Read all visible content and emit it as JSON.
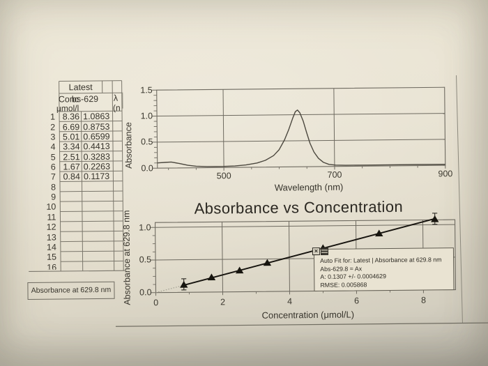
{
  "colors": {
    "paper": "#e8e2d1",
    "grid_line": "#6e6a60",
    "ink": "#34302a",
    "curve": "#4b473e",
    "marker": "#17150f",
    "fit_line": "#16130e"
  },
  "table": {
    "header": "Latest",
    "columns": [
      {
        "name": "Conc",
        "units": "μmol/l"
      },
      {
        "name": "bs-629",
        "units": ""
      },
      {
        "name": "λ",
        "units": "(n"
      }
    ],
    "rows": [
      {
        "n": "1",
        "conc": "8.36",
        "abs": "1.0863"
      },
      {
        "n": "2",
        "conc": "6.69",
        "abs": "0.8753"
      },
      {
        "n": "3",
        "conc": "5.01",
        "abs": "0.6599"
      },
      {
        "n": "4",
        "conc": "3.34",
        "abs": "0.4413"
      },
      {
        "n": "5",
        "conc": "2.51",
        "abs": "0.3283"
      },
      {
        "n": "6",
        "conc": "1.67",
        "abs": "0.2263"
      },
      {
        "n": "7",
        "conc": "0.84",
        "abs": "0.1173"
      }
    ],
    "empty_rows": [
      "8",
      "9",
      "10",
      "11",
      "12",
      "13",
      "14",
      "15",
      "16"
    ],
    "footer_label": "Absorbance at 629.8 nm"
  },
  "fit_box": {
    "title": "Auto Fit for: Latest | Absorbance at 629.8 nm",
    "equation": "Abs-629.8 = Ax",
    "coefficient": "A: 0.1307 +/- 0.0004629",
    "rmse": "RMSE: 0.005868",
    "close_glyph": "×",
    "icons": [
      "close-icon",
      "drag-handle-icon"
    ]
  },
  "chart_data": [
    {
      "type": "line",
      "title": "",
      "xlabel": "Wavelength (nm)",
      "ylabel": "Absorbance",
      "xlim": [
        380,
        900
      ],
      "ylim": [
        0,
        1.5
      ],
      "xticks": [
        "500",
        "700",
        "900"
      ],
      "yticks": [
        "0.0",
        "0.5",
        "1.0",
        "1.5"
      ],
      "grid": true,
      "series": [
        {
          "name": "absorbance-spectrum",
          "x": [
            380,
            395,
            405,
            420,
            435,
            450,
            470,
            500,
            520,
            540,
            560,
            575,
            590,
            600,
            610,
            618,
            625,
            630,
            634,
            638,
            644,
            650,
            656,
            663,
            671,
            680,
            690,
            702,
            720,
            760,
            800,
            850,
            900
          ],
          "y": [
            0.1,
            0.11,
            0.115,
            0.085,
            0.05,
            0.03,
            0.022,
            0.022,
            0.028,
            0.045,
            0.08,
            0.13,
            0.22,
            0.33,
            0.52,
            0.72,
            0.93,
            1.06,
            1.09,
            1.04,
            0.88,
            0.66,
            0.45,
            0.28,
            0.16,
            0.08,
            0.04,
            0.025,
            0.02,
            0.02,
            0.022,
            0.022,
            0.02
          ]
        }
      ]
    },
    {
      "type": "scatter",
      "title": "Absorbance vs Concentration",
      "xlabel": "Concentration (μmol/L)",
      "ylabel": "Absorbance at 629.8 nm",
      "xlim": [
        0,
        8.96
      ],
      "ylim": [
        0,
        1.075
      ],
      "xticks": [
        "0",
        "2",
        "4",
        "6",
        "8"
      ],
      "yticks": [
        "0.0",
        "0.5",
        "1.0"
      ],
      "grid": true,
      "x": [
        0.84,
        1.67,
        2.51,
        3.34,
        5.01,
        6.69,
        8.36
      ],
      "y": [
        0.1173,
        0.2263,
        0.3283,
        0.4413,
        0.6599,
        0.8753,
        1.0863
      ],
      "marker": "triangle",
      "error_bar_point_indices": [
        0,
        6
      ],
      "fit": {
        "type": "proportional",
        "slope": 0.1307,
        "slope_err": 0.0004629,
        "rmse": 0.005868
      }
    }
  ]
}
